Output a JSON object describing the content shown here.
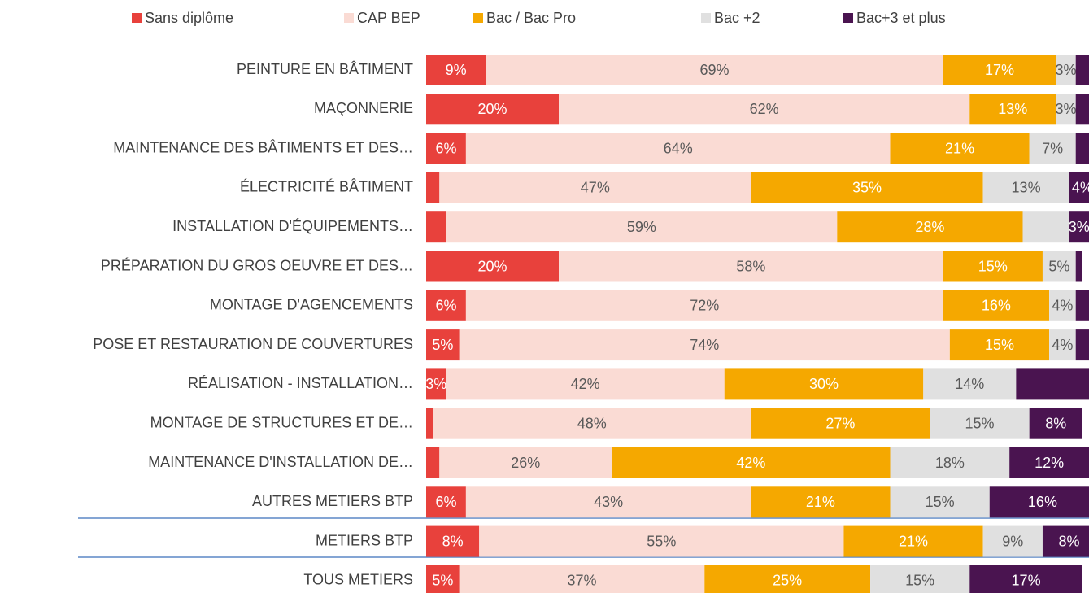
{
  "chart_data": {
    "type": "stacked_bar_horizontal",
    "categories": [
      "PEINTURE EN BÂTIMENT",
      "MAÇONNERIE",
      "MAINTENANCE DES BÂTIMENTS ET DES…",
      "ÉLECTRICITÉ BÂTIMENT",
      "INSTALLATION D'ÉQUIPEMENTS…",
      "PRÉPARATION DU GROS OEUVRE ET DES…",
      "MONTAGE D'AGENCEMENTS",
      "POSE ET RESTAURATION DE COUVERTURES",
      "RÉALISATION - INSTALLATION…",
      "MONTAGE DE STRUCTURES ET DE…",
      "MAINTENANCE D'INSTALLATION DE…",
      "AUTRES METIERS BTP",
      "METIERS BTP",
      "TOUS METIERS"
    ],
    "xlim": [
      0,
      100
    ],
    "series": [
      {
        "name": "Sans diplôme",
        "color": "#e8413c",
        "label_color": "#ffffff",
        "values": [
          9,
          20,
          6,
          2,
          3,
          20,
          6,
          5,
          3,
          1,
          2,
          6,
          8,
          5
        ],
        "value_labels": [
          "9%",
          "20%",
          "6%",
          null,
          null,
          "20%",
          "6%",
          "5%",
          "3%",
          null,
          null,
          "6%",
          "8%",
          "5%"
        ]
      },
      {
        "name": "CAP BEP",
        "color": "#fadbd4",
        "label_color": "#595959",
        "values": [
          69,
          62,
          64,
          47,
          59,
          58,
          72,
          74,
          42,
          48,
          26,
          43,
          55,
          37
        ],
        "value_labels": [
          "69%",
          "62%",
          "64%",
          "47%",
          "59%",
          "58%",
          "72%",
          "74%",
          "42%",
          "48%",
          "26%",
          "43%",
          "55%",
          "37%"
        ]
      },
      {
        "name": "Bac / Bac Pro",
        "color": "#f5a800",
        "label_color": "#ffffff",
        "values": [
          17,
          13,
          21,
          35,
          28,
          15,
          16,
          15,
          30,
          27,
          42,
          21,
          21,
          25
        ],
        "value_labels": [
          "17%",
          "13%",
          "21%",
          "35%",
          "28%",
          "15%",
          "16%",
          "15%",
          "30%",
          "27%",
          "42%",
          "21%",
          "21%",
          "25%"
        ]
      },
      {
        "name": "Bac +2",
        "color": "#e0e0e0",
        "label_color": "#595959",
        "values": [
          3,
          3,
          7,
          13,
          7,
          5,
          4,
          4,
          14,
          15,
          18,
          15,
          9,
          15
        ],
        "value_labels": [
          "3%",
          "3%",
          "7%",
          "13%",
          null,
          "5%",
          "4%",
          "4%",
          "14%",
          "15%",
          "18%",
          "15%",
          "9%",
          "15%"
        ]
      },
      {
        "name": "Bac+3 et plus",
        "color": "#4a1450",
        "label_color": "#ffffff",
        "values": [
          2,
          2,
          2,
          4,
          3,
          1,
          2,
          2,
          11,
          8,
          12,
          16,
          8,
          17
        ],
        "value_labels": [
          null,
          null,
          null,
          "4%",
          "3%",
          null,
          null,
          null,
          null,
          "8%",
          "12%",
          "16%",
          "8%",
          "17%"
        ]
      }
    ]
  }
}
